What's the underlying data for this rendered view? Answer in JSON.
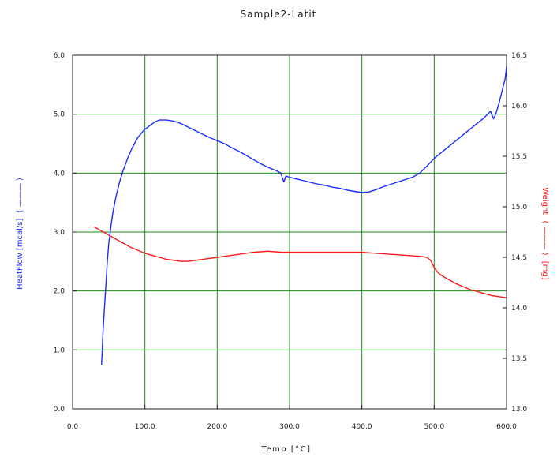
{
  "chart_data": {
    "type": "line",
    "title": "Sample2-Latit",
    "xlabel": "Temp [°C]",
    "ylabel": "HeatFlow [mcal/s]",
    "ylabel_left_marker": "( ——— )",
    "y2label": "[mg]",
    "y2label_prefix": "Weight",
    "y2label_marker": "( ——— )",
    "xlim": [
      0,
      600
    ],
    "ylim": [
      0,
      6
    ],
    "y2lim": [
      13,
      16.5
    ],
    "grid": true,
    "grid_color": "#1a8a1a",
    "x_ticks": [
      {
        "value": 0,
        "label": "0.0"
      },
      {
        "value": 100,
        "label": "100.0"
      },
      {
        "value": 200,
        "label": "200.0"
      },
      {
        "value": 300,
        "label": "300.0"
      },
      {
        "value": 400,
        "label": "400.0"
      },
      {
        "value": 500,
        "label": "500.0"
      },
      {
        "value": 600,
        "label": "600.0"
      }
    ],
    "y_ticks": [
      {
        "value": 0,
        "label": "0.0"
      },
      {
        "value": 1,
        "label": "1.0"
      },
      {
        "value": 2,
        "label": "2.0"
      },
      {
        "value": 3,
        "label": "3.0"
      },
      {
        "value": 4,
        "label": "4.0"
      },
      {
        "value": 5,
        "label": "5.0"
      },
      {
        "value": 6,
        "label": "6.0"
      }
    ],
    "y2_ticks": [
      {
        "value": 13.0,
        "label": "13.0"
      },
      {
        "value": 13.5,
        "label": "13.5"
      },
      {
        "value": 14.0,
        "label": "14.0"
      },
      {
        "value": 14.5,
        "label": "14.5"
      },
      {
        "value": 15.0,
        "label": "15.0"
      },
      {
        "value": 15.5,
        "label": "15.5"
      },
      {
        "value": 16.0,
        "label": "16.0"
      },
      {
        "value": 16.5,
        "label": "16.5"
      }
    ],
    "series": [
      {
        "axis": "left",
        "color": "#1a2fff",
        "points": [
          [
            40,
            0.75
          ],
          [
            41,
            1.0
          ],
          [
            42,
            1.3
          ],
          [
            44,
            1.7
          ],
          [
            46,
            2.1
          ],
          [
            48,
            2.5
          ],
          [
            50,
            2.8
          ],
          [
            53,
            3.1
          ],
          [
            56,
            3.35
          ],
          [
            60,
            3.6
          ],
          [
            65,
            3.85
          ],
          [
            70,
            4.05
          ],
          [
            76,
            4.25
          ],
          [
            82,
            4.42
          ],
          [
            90,
            4.6
          ],
          [
            98,
            4.72
          ],
          [
            106,
            4.8
          ],
          [
            114,
            4.87
          ],
          [
            120,
            4.9
          ],
          [
            130,
            4.9
          ],
          [
            140,
            4.88
          ],
          [
            150,
            4.84
          ],
          [
            160,
            4.78
          ],
          [
            170,
            4.72
          ],
          [
            180,
            4.66
          ],
          [
            190,
            4.6
          ],
          [
            200,
            4.55
          ],
          [
            210,
            4.5
          ],
          [
            220,
            4.43
          ],
          [
            230,
            4.37
          ],
          [
            240,
            4.3
          ],
          [
            250,
            4.23
          ],
          [
            260,
            4.16
          ],
          [
            270,
            4.1
          ],
          [
            280,
            4.05
          ],
          [
            288,
            4.0
          ],
          [
            292,
            3.85
          ],
          [
            295,
            3.95
          ],
          [
            300,
            3.93
          ],
          [
            310,
            3.9
          ],
          [
            320,
            3.87
          ],
          [
            330,
            3.84
          ],
          [
            340,
            3.81
          ],
          [
            350,
            3.79
          ],
          [
            360,
            3.76
          ],
          [
            370,
            3.74
          ],
          [
            380,
            3.71
          ],
          [
            390,
            3.69
          ],
          [
            400,
            3.67
          ],
          [
            410,
            3.68
          ],
          [
            420,
            3.72
          ],
          [
            430,
            3.77
          ],
          [
            440,
            3.81
          ],
          [
            450,
            3.85
          ],
          [
            460,
            3.89
          ],
          [
            470,
            3.93
          ],
          [
            480,
            4.0
          ],
          [
            490,
            4.12
          ],
          [
            500,
            4.25
          ],
          [
            510,
            4.35
          ],
          [
            520,
            4.45
          ],
          [
            530,
            4.55
          ],
          [
            540,
            4.65
          ],
          [
            550,
            4.75
          ],
          [
            560,
            4.85
          ],
          [
            570,
            4.95
          ],
          [
            578,
            5.05
          ],
          [
            582,
            4.92
          ],
          [
            585,
            5.0
          ],
          [
            590,
            5.2
          ],
          [
            595,
            5.45
          ],
          [
            598,
            5.6
          ],
          [
            600,
            5.8
          ]
        ]
      },
      {
        "axis": "right",
        "color": "#ff1a1a",
        "points": [
          [
            30,
            14.8
          ],
          [
            40,
            14.76
          ],
          [
            50,
            14.72
          ],
          [
            60,
            14.68
          ],
          [
            70,
            14.64
          ],
          [
            80,
            14.6
          ],
          [
            90,
            14.57
          ],
          [
            100,
            14.54
          ],
          [
            110,
            14.52
          ],
          [
            120,
            14.5
          ],
          [
            130,
            14.48
          ],
          [
            140,
            14.47
          ],
          [
            150,
            14.46
          ],
          [
            160,
            14.46
          ],
          [
            170,
            14.47
          ],
          [
            180,
            14.48
          ],
          [
            190,
            14.49
          ],
          [
            200,
            14.5
          ],
          [
            210,
            14.51
          ],
          [
            220,
            14.52
          ],
          [
            230,
            14.53
          ],
          [
            240,
            14.54
          ],
          [
            250,
            14.55
          ],
          [
            260,
            14.555
          ],
          [
            270,
            14.56
          ],
          [
            280,
            14.555
          ],
          [
            290,
            14.55
          ],
          [
            300,
            14.55
          ],
          [
            320,
            14.55
          ],
          [
            340,
            14.55
          ],
          [
            360,
            14.55
          ],
          [
            380,
            14.55
          ],
          [
            400,
            14.55
          ],
          [
            420,
            14.54
          ],
          [
            440,
            14.53
          ],
          [
            460,
            14.52
          ],
          [
            480,
            14.51
          ],
          [
            490,
            14.5
          ],
          [
            495,
            14.47
          ],
          [
            500,
            14.4
          ],
          [
            505,
            14.35
          ],
          [
            510,
            14.32
          ],
          [
            520,
            14.28
          ],
          [
            530,
            14.24
          ],
          [
            540,
            14.21
          ],
          [
            550,
            14.18
          ],
          [
            560,
            14.16
          ],
          [
            570,
            14.14
          ],
          [
            580,
            14.12
          ],
          [
            590,
            14.11
          ],
          [
            600,
            14.1
          ]
        ]
      }
    ]
  }
}
